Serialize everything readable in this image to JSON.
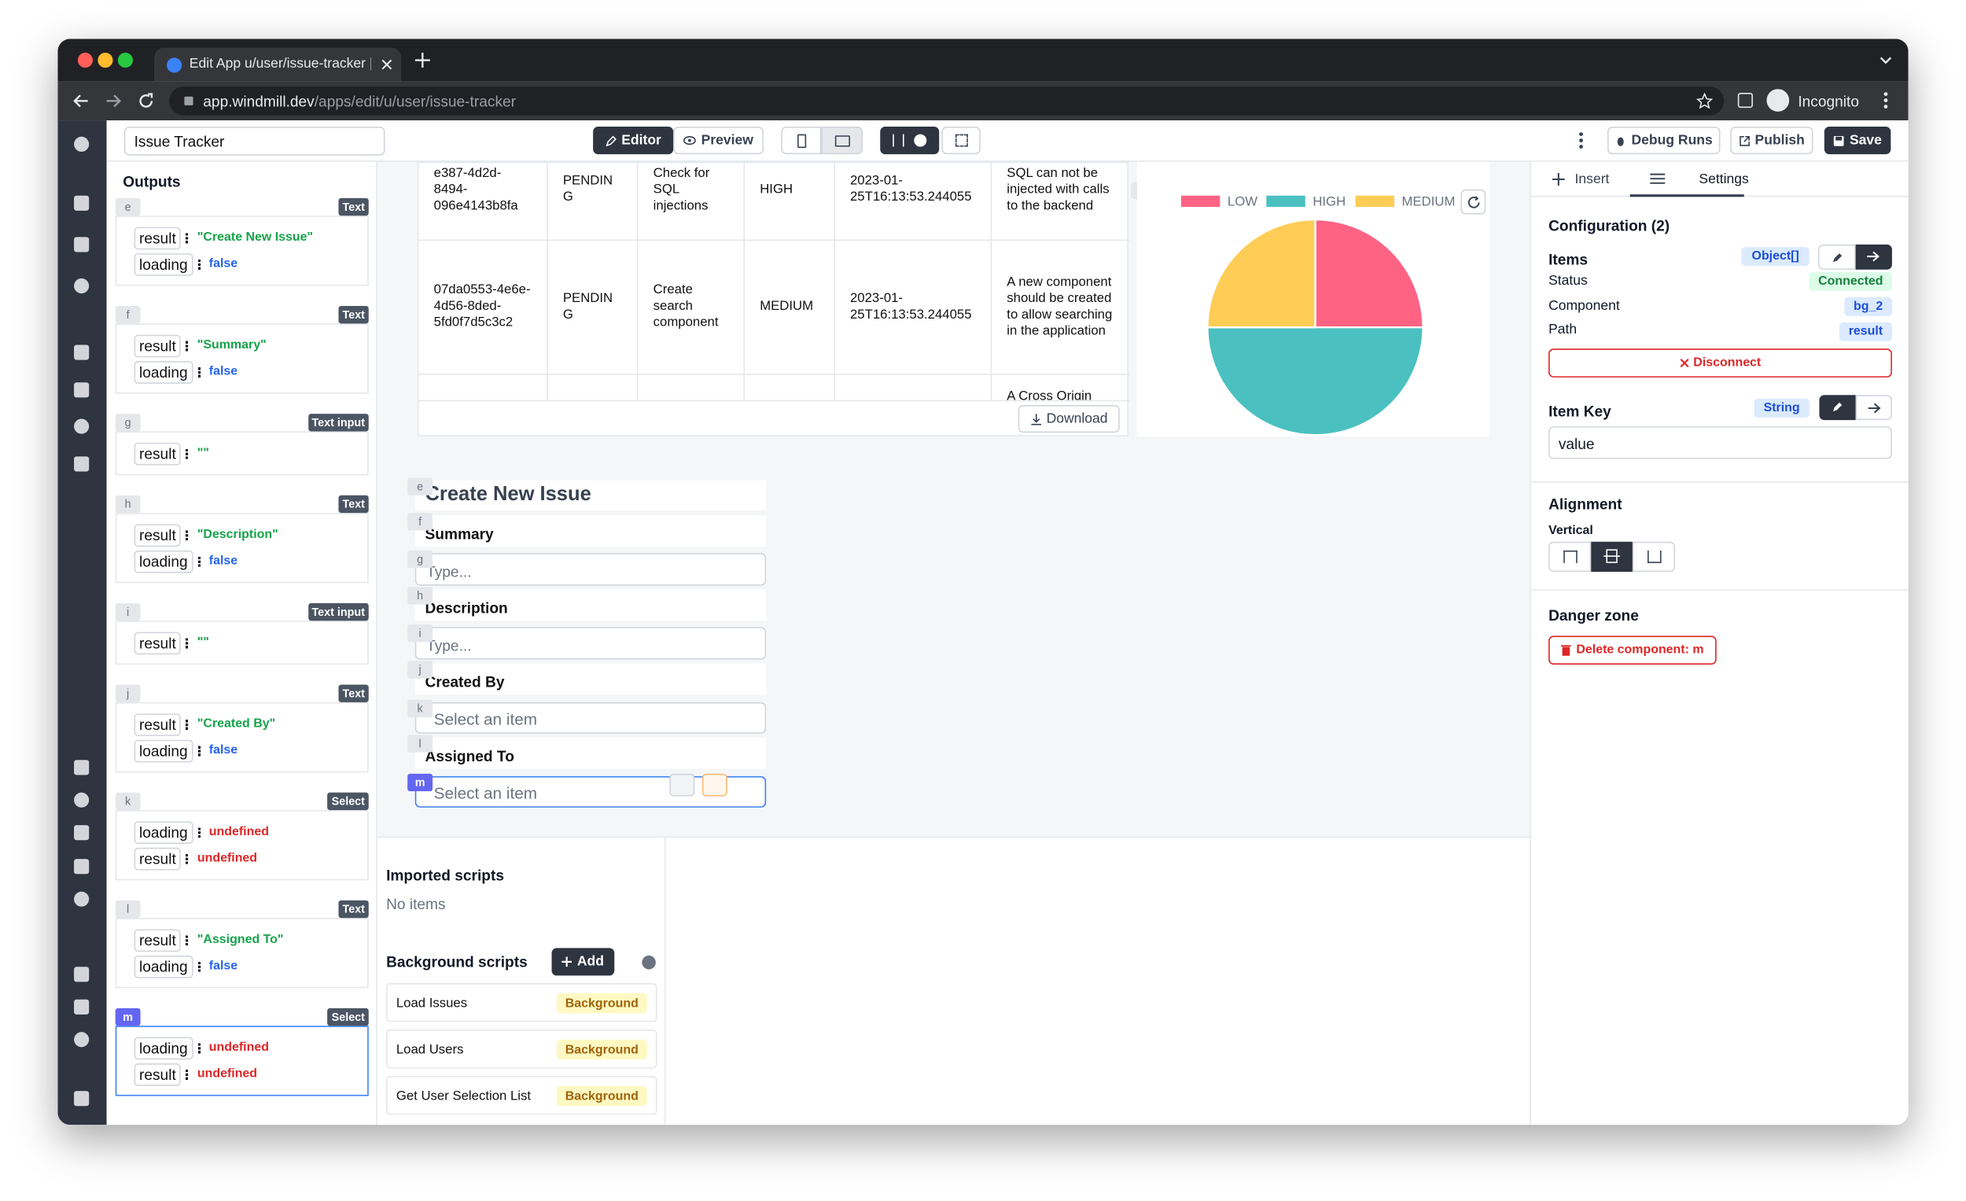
{
  "browser": {
    "tab_title": "Edit App u/user/issue-tracker |",
    "url_host": "app.windmill.dev",
    "url_path": "/apps/edit/u/user/issue-tracker",
    "profile": "Incognito"
  },
  "toolbar": {
    "app_name": "Issue Tracker",
    "editor": "Editor",
    "preview": "Preview",
    "debug_runs": "Debug Runs",
    "publish": "Publish",
    "save": "Save"
  },
  "outputs": {
    "title": "Outputs",
    "components": [
      {
        "id": "e",
        "type": "Text",
        "fields": [
          {
            "key": "result",
            "value": "\"Create New Issue\"",
            "color": "#16a34a"
          },
          {
            "key": "loading",
            "value": "false",
            "color": "#2563eb"
          }
        ]
      },
      {
        "id": "f",
        "type": "Text",
        "fields": [
          {
            "key": "result",
            "value": "\"Summary\"",
            "color": "#16a34a"
          },
          {
            "key": "loading",
            "value": "false",
            "color": "#2563eb"
          }
        ]
      },
      {
        "id": "g",
        "type": "Text input",
        "fields": [
          {
            "key": "result",
            "value": "\"\"",
            "color": "#16a34a"
          }
        ]
      },
      {
        "id": "h",
        "type": "Text",
        "fields": [
          {
            "key": "result",
            "value": "\"Description\"",
            "color": "#16a34a"
          },
          {
            "key": "loading",
            "value": "false",
            "color": "#2563eb"
          }
        ]
      },
      {
        "id": "i",
        "type": "Text input",
        "fields": [
          {
            "key": "result",
            "value": "\"\"",
            "color": "#16a34a"
          }
        ]
      },
      {
        "id": "j",
        "type": "Text",
        "fields": [
          {
            "key": "result",
            "value": "\"Created By\"",
            "color": "#16a34a"
          },
          {
            "key": "loading",
            "value": "false",
            "color": "#2563eb"
          }
        ]
      },
      {
        "id": "k",
        "type": "Select",
        "fields": [
          {
            "key": "loading",
            "value": "undefined",
            "color": "#dc2626"
          },
          {
            "key": "result",
            "value": "undefined",
            "color": "#dc2626"
          }
        ]
      },
      {
        "id": "l",
        "type": "Text",
        "fields": [
          {
            "key": "result",
            "value": "\"Assigned To\"",
            "color": "#16a34a"
          },
          {
            "key": "loading",
            "value": "false",
            "color": "#2563eb"
          }
        ]
      },
      {
        "id": "m",
        "type": "Select",
        "selected": true,
        "fields": [
          {
            "key": "loading",
            "value": "undefined",
            "color": "#dc2626"
          },
          {
            "key": "result",
            "value": "undefined",
            "color": "#dc2626"
          }
        ]
      }
    ]
  },
  "table": {
    "rows": [
      [
        "e387-4d2d-8494-096e4143b8fa",
        "PENDING",
        "Check for SQL injections",
        "HIGH",
        "2023-01-25T16:13:53.244055",
        "SQL can not be injected with calls to the backend"
      ],
      [
        "07da0553-4e6e-4d56-8ded-5fd0f7d5c3c2",
        "PENDING",
        "Create search component",
        "MEDIUM",
        "2023-01-25T16:13:53.244055",
        "A new component should be created to allow searching in the application"
      ],
      [
        null,
        null,
        null,
        null,
        null,
        "A Cross Origin"
      ]
    ],
    "download": "Download"
  },
  "chart_data": {
    "type": "pie",
    "id": "d",
    "categories": [
      "LOW",
      "HIGH",
      "MEDIUM"
    ],
    "values": [
      1,
      2,
      1
    ],
    "colors": [
      "#ff6384",
      "#4bc0c0",
      "#ffcd56"
    ]
  },
  "form": {
    "title": {
      "id": "e",
      "text": "Create New Issue"
    },
    "summary": {
      "id": "f",
      "text": "Summary"
    },
    "summary_input": {
      "id": "g",
      "placeholder": "Type..."
    },
    "description": {
      "id": "h",
      "text": "Description"
    },
    "description_input": {
      "id": "i",
      "placeholder": "Type..."
    },
    "created_by": {
      "id": "j",
      "text": "Created By"
    },
    "created_by_select": {
      "id": "k",
      "placeholder": "Select an item"
    },
    "assigned_to": {
      "id": "l",
      "text": "Assigned To"
    },
    "assigned_to_select": {
      "id": "m",
      "placeholder": "Select an item"
    }
  },
  "scripts": {
    "imported_title": "Imported scripts",
    "imported_empty": "No items",
    "background_title": "Background scripts",
    "add": "Add",
    "items": [
      {
        "name": "Load Issues",
        "kind": "Background"
      },
      {
        "name": "Load Users",
        "kind": "Background"
      },
      {
        "name": "Get User Selection List",
        "kind": "Background"
      }
    ]
  },
  "settings": {
    "tabs": [
      "Insert",
      "Settings"
    ],
    "configuration": "Configuration (2)",
    "items": {
      "label": "Items",
      "type": "Object[]",
      "status_label": "Status",
      "status": "Connected",
      "component_label": "Component",
      "component": "bg_2",
      "path_label": "Path",
      "path": "result",
      "disconnect": "Disconnect"
    },
    "item_key": {
      "label": "Item Key",
      "type": "String",
      "value": "value"
    },
    "alignment": {
      "title": "Alignment",
      "vertical": "Vertical"
    },
    "danger": {
      "title": "Danger zone",
      "delete": "Delete component: m"
    }
  }
}
